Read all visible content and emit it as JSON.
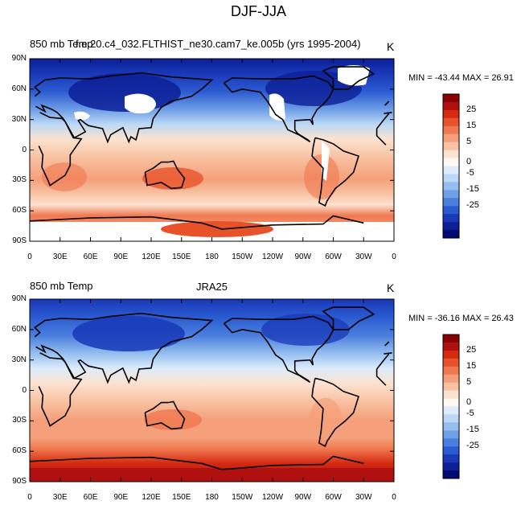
{
  "figure_title": "DJF-JJA",
  "panels": [
    {
      "left_title": "850 mb Temp",
      "center_title": "f.e.20.c4_032.FLTHIST_ne30.cam7_ke.005b (yrs 1995-2004)",
      "units": "K",
      "minmax_text": "MIN = -43.44 MAX =  26.91"
    },
    {
      "left_title": "850 mb Temp",
      "center_title": "JRA25",
      "units": "K",
      "minmax_text": "MIN = -36.16 MAX =  26.43"
    }
  ],
  "axes": {
    "lat_ticks": [
      "90N",
      "60N",
      "30N",
      "0",
      "30S",
      "60S",
      "90S"
    ],
    "lon_ticks": [
      "0",
      "30E",
      "60E",
      "90E",
      "120E",
      "150E",
      "180",
      "150W",
      "120W",
      "90W",
      "60W",
      "30W",
      "0"
    ]
  },
  "colorbar": {
    "labels": [
      "25",
      "15",
      "5",
      "0",
      "-5",
      "-15",
      "-25"
    ],
    "colors": [
      "#8b0000",
      "#b01010",
      "#d42a10",
      "#e8522a",
      "#f07850",
      "#f5a07a",
      "#f8c2a2",
      "#fce2d0",
      "#fff8f0",
      "#dcecfb",
      "#bcd8f6",
      "#96bff0",
      "#6f9fe6",
      "#4a7fdd",
      "#2b5bd0",
      "#1838b8",
      "#0c1f96",
      "#000a70"
    ]
  },
  "colors": {
    "land_outline": "#000000",
    "ocean_warm": "#f8c2a2",
    "polar_cold": "#1838b8"
  }
}
